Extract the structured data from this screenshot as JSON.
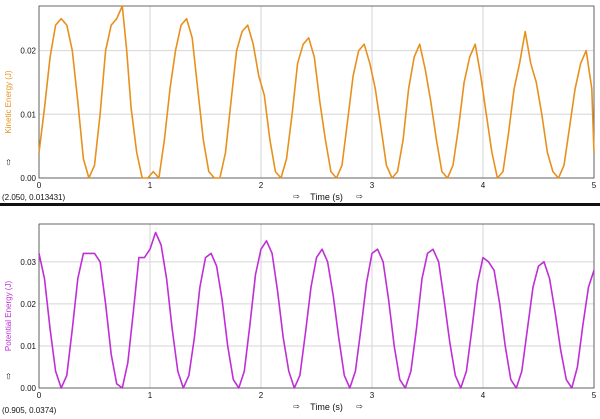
{
  "colors": {
    "kinetic": "#e8901e",
    "potential": "#bf2ed6",
    "grid": "#d6d6d6",
    "axis": "#444444",
    "divider": "#111111"
  },
  "arrow_glyph": "⇨",
  "chart_data": [
    {
      "type": "line",
      "xlabel": "Time (s)",
      "ylabel": "Kinetic Energy (J)",
      "xlim": [
        0,
        5
      ],
      "ylim": [
        0,
        0.027
      ],
      "x_ticks": [
        "0",
        "1",
        "2",
        "3",
        "4",
        "5"
      ],
      "y_ticks": [
        {
          "v": 0,
          "label": "0.00"
        },
        {
          "v": 0.01,
          "label": "0.01"
        },
        {
          "v": 0.02,
          "label": "0.02"
        }
      ],
      "grid": true,
      "readout": "(2.050, 0.013431)",
      "series": [
        {
          "color": "#e8901e",
          "x": [
            0.0,
            0.05,
            0.1,
            0.15,
            0.2,
            0.25,
            0.3,
            0.35,
            0.4,
            0.45,
            0.5,
            0.55,
            0.6,
            0.65,
            0.7,
            0.75,
            0.79,
            0.83,
            0.88,
            0.93,
            0.98,
            1.03,
            1.08,
            1.13,
            1.18,
            1.23,
            1.28,
            1.33,
            1.38,
            1.43,
            1.48,
            1.53,
            1.58,
            1.63,
            1.68,
            1.73,
            1.78,
            1.83,
            1.88,
            1.93,
            1.98,
            2.03,
            2.08,
            2.13,
            2.18,
            2.23,
            2.28,
            2.33,
            2.38,
            2.43,
            2.48,
            2.53,
            2.58,
            2.63,
            2.68,
            2.73,
            2.78,
            2.83,
            2.88,
            2.93,
            2.98,
            3.03,
            3.08,
            3.13,
            3.18,
            3.23,
            3.28,
            3.33,
            3.38,
            3.43,
            3.48,
            3.53,
            3.58,
            3.63,
            3.68,
            3.73,
            3.78,
            3.83,
            3.88,
            3.93,
            3.98,
            4.03,
            4.08,
            4.13,
            4.18,
            4.23,
            4.28,
            4.33,
            4.38,
            4.43,
            4.48,
            4.53,
            4.58,
            4.63,
            4.68,
            4.73,
            4.78,
            4.83,
            4.88,
            4.93,
            4.98,
            5.0
          ],
          "values": [
            0.004,
            0.011,
            0.019,
            0.024,
            0.025,
            0.024,
            0.02,
            0.012,
            0.003,
            0.0,
            0.002,
            0.01,
            0.02,
            0.024,
            0.025,
            0.027,
            0.02,
            0.011,
            0.004,
            0.0,
            0.0,
            0.001,
            0.0,
            0.006,
            0.014,
            0.02,
            0.024,
            0.025,
            0.022,
            0.014,
            0.006,
            0.001,
            0.0,
            0.0,
            0.004,
            0.012,
            0.02,
            0.023,
            0.024,
            0.021,
            0.016,
            0.013,
            0.006,
            0.001,
            0.0,
            0.003,
            0.01,
            0.018,
            0.021,
            0.022,
            0.019,
            0.012,
            0.006,
            0.001,
            0.0,
            0.002,
            0.009,
            0.016,
            0.02,
            0.021,
            0.018,
            0.014,
            0.008,
            0.002,
            0.0,
            0.001,
            0.006,
            0.014,
            0.019,
            0.021,
            0.017,
            0.012,
            0.006,
            0.001,
            0.0,
            0.002,
            0.008,
            0.015,
            0.019,
            0.021,
            0.016,
            0.01,
            0.004,
            0.0,
            0.001,
            0.007,
            0.014,
            0.018,
            0.023,
            0.018,
            0.015,
            0.01,
            0.004,
            0.001,
            0.0,
            0.002,
            0.008,
            0.014,
            0.018,
            0.02,
            0.014,
            0.004
          ]
        }
      ]
    },
    {
      "type": "line",
      "xlabel": "Time (s)",
      "ylabel": "Potential Energy (J)",
      "xlim": [
        0,
        5
      ],
      "ylim": [
        0,
        0.039
      ],
      "x_ticks": [
        "0",
        "1",
        "2",
        "3",
        "4",
        "5"
      ],
      "y_ticks": [
        {
          "v": 0,
          "label": "0.00"
        },
        {
          "v": 0.01,
          "label": "0.01"
        },
        {
          "v": 0.02,
          "label": "0.02"
        },
        {
          "v": 0.03,
          "label": "0.03"
        }
      ],
      "grid": true,
      "readout": "(0.905, 0.0374)",
      "series": [
        {
          "color": "#bf2ed6",
          "x": [
            0.0,
            0.05,
            0.1,
            0.15,
            0.2,
            0.25,
            0.3,
            0.35,
            0.4,
            0.45,
            0.5,
            0.55,
            0.6,
            0.65,
            0.7,
            0.75,
            0.8,
            0.85,
            0.9,
            0.95,
            1.0,
            1.05,
            1.1,
            1.15,
            1.2,
            1.25,
            1.3,
            1.35,
            1.4,
            1.45,
            1.5,
            1.55,
            1.6,
            1.65,
            1.7,
            1.75,
            1.8,
            1.85,
            1.9,
            1.95,
            2.0,
            2.05,
            2.1,
            2.15,
            2.2,
            2.25,
            2.3,
            2.35,
            2.4,
            2.45,
            2.5,
            2.55,
            2.6,
            2.65,
            2.7,
            2.75,
            2.8,
            2.85,
            2.9,
            2.95,
            3.0,
            3.05,
            3.1,
            3.15,
            3.2,
            3.25,
            3.3,
            3.35,
            3.4,
            3.45,
            3.5,
            3.55,
            3.6,
            3.65,
            3.7,
            3.75,
            3.8,
            3.85,
            3.9,
            3.95,
            4.0,
            4.05,
            4.1,
            4.15,
            4.2,
            4.25,
            4.3,
            4.35,
            4.4,
            4.45,
            4.5,
            4.55,
            4.6,
            4.65,
            4.7,
            4.75,
            4.8,
            4.85,
            4.9,
            4.95,
            5.0
          ],
          "values": [
            0.032,
            0.026,
            0.014,
            0.004,
            0.0,
            0.003,
            0.014,
            0.026,
            0.032,
            0.032,
            0.032,
            0.03,
            0.02,
            0.008,
            0.001,
            0.0,
            0.006,
            0.018,
            0.031,
            0.031,
            0.033,
            0.037,
            0.034,
            0.026,
            0.014,
            0.004,
            0.0,
            0.003,
            0.012,
            0.024,
            0.031,
            0.032,
            0.029,
            0.021,
            0.01,
            0.002,
            0.0,
            0.004,
            0.015,
            0.027,
            0.033,
            0.035,
            0.032,
            0.023,
            0.012,
            0.004,
            0.0,
            0.003,
            0.013,
            0.024,
            0.031,
            0.033,
            0.03,
            0.022,
            0.012,
            0.003,
            0.0,
            0.004,
            0.014,
            0.025,
            0.032,
            0.033,
            0.03,
            0.021,
            0.01,
            0.002,
            0.0,
            0.004,
            0.014,
            0.026,
            0.032,
            0.033,
            0.03,
            0.021,
            0.011,
            0.003,
            0.0,
            0.004,
            0.014,
            0.025,
            0.031,
            0.03,
            0.028,
            0.02,
            0.01,
            0.002,
            0.0,
            0.004,
            0.014,
            0.024,
            0.029,
            0.03,
            0.026,
            0.018,
            0.009,
            0.002,
            0.0,
            0.005,
            0.015,
            0.024,
            0.028
          ]
        }
      ]
    }
  ]
}
